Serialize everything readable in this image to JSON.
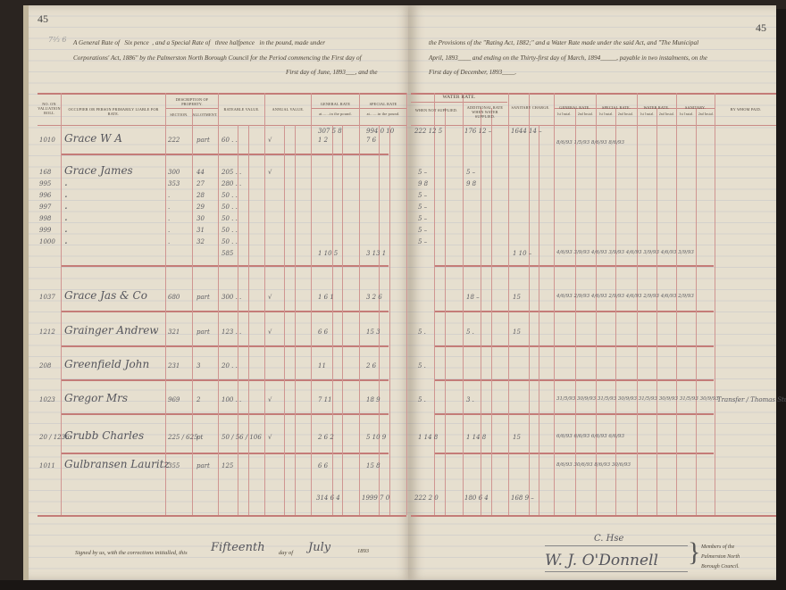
{
  "page_numbers": {
    "left": "45",
    "right": "45"
  },
  "margin_note": "7²⁄₃ 6",
  "preamble": {
    "left_lines": [
      "A General Rate of  Six pence , and a Special Rate of  three halfpence  in the pound, made under",
      "Corporations' Act, 1886\" by the Palmerston North Borough Council for the Period commencing the First day of",
      "First day of June, 1893___, and the"
    ],
    "right_lines": [
      "the Provisions of the \"Rating Act, 1882;\" and a Water Rate made under the said Act, and \"The Municipal",
      "April, 1893____ and ending on the Thirty-first day of March, 1894_____, payable in two instalments, on the",
      "First day of December, 1893____."
    ]
  },
  "columns": {
    "valuation_roll": "No. on Valuation Roll",
    "occupier": "Occupier or Person Primarily Liable for Rate.",
    "description": "Description of Property.",
    "section": "Section.",
    "allotment": "Allotment.",
    "rateable_value": "Rateable Value.",
    "annual_value": "Annual Value.",
    "general_rate": "General Rate",
    "general_rate_sub": "at.......in the pound.",
    "special_rate": "Special Rate",
    "special_rate_sub": "at.......in the pound.",
    "water_rate": "Water Rate.",
    "when_not_supplied": "When Not Supplied.",
    "additional_rate": "Additional Rate When Water Supplied.",
    "sanitary": "Sanitary Charge.",
    "pay_general": "General Rate.",
    "pay_special": "Special Rate.",
    "pay_water": "Water Rate.",
    "pay_sanitary": "Sanitary.",
    "inst1": "1st Instal.",
    "inst2": "2nd Instal.",
    "by_whom_paid": "By Whom Paid."
  },
  "brought_forward": {
    "general": "307 5 8",
    "special": "994 0 10",
    "water": "222 12 5",
    "additional": "176 12 –",
    "sanitary": "1644 14 –"
  },
  "rows": [
    {
      "val": "1010",
      "name": "Grace W A",
      "section": "222",
      "allotment": "part",
      "rateable": "60 . .",
      "check": "√",
      "general": "1 2",
      "special": "7 6",
      "water": "",
      "additional": "",
      "sanitary": "",
      "payments": "8/6/93  1/5/93  8/6/93  8/6/93",
      "paid_by": ""
    },
    {
      "val": "168",
      "name": "Grace James",
      "section": "300",
      "allotment": "44",
      "rateable": "205 . .",
      "check": "√",
      "general": "",
      "special": "",
      "water": "5 –",
      "additional": "5 –",
      "sanitary": "",
      "payments": "",
      "paid_by": ""
    },
    {
      "val": "995",
      "name": ".",
      "section": "353",
      "allotment": "27",
      "rateable": "280 . .",
      "check": "",
      "general": "",
      "special": "",
      "water": "9 8",
      "additional": "9 8",
      "sanitary": "",
      "payments": "",
      "paid_by": ""
    },
    {
      "val": "996",
      "name": ".",
      "section": ".",
      "allotment": "28",
      "rateable": "50 . .",
      "check": "",
      "general": "",
      "special": "",
      "water": "5 –",
      "additional": "",
      "sanitary": "",
      "payments": "",
      "paid_by": ""
    },
    {
      "val": "997",
      "name": ".",
      "section": ".",
      "allotment": "29",
      "rateable": "50 . .",
      "check": "",
      "general": "",
      "special": "",
      "water": "5 –",
      "additional": "",
      "sanitary": "",
      "payments": "",
      "paid_by": ""
    },
    {
      "val": "998",
      "name": ".",
      "section": ".",
      "allotment": "30",
      "rateable": "50 . .",
      "check": "",
      "general": "",
      "special": "",
      "water": "5 –",
      "additional": "",
      "sanitary": "",
      "payments": "",
      "paid_by": ""
    },
    {
      "val": "999",
      "name": ".",
      "section": ".",
      "allotment": "31",
      "rateable": "50 . .",
      "check": "",
      "general": "",
      "special": "",
      "water": "5 –",
      "additional": "",
      "sanitary": "",
      "payments": "",
      "paid_by": ""
    },
    {
      "val": "1000",
      "name": ".",
      "section": ".",
      "allotment": "32",
      "rateable": "50 . .",
      "check": "",
      "general": "",
      "special": "",
      "water": "5 –",
      "additional": "",
      "sanitary": "",
      "payments": "",
      "paid_by": ""
    },
    {
      "val": "",
      "name": "",
      "section": "",
      "allotment": "",
      "rateable": "585",
      "check": "",
      "general": "1 10 5",
      "special": "3 13 1",
      "water": "",
      "additional": "",
      "sanitary": "1 10 –",
      "payments": "4/6/93 3/9/93 4/6/93 3/9/93 4/6/93 3/9/93 4/6/93 3/9/93",
      "paid_by": ""
    },
    {
      "val": "1037",
      "name": "Grace Jas & Co",
      "section": "680",
      "allotment": "part",
      "rateable": "300 . .",
      "check": "√",
      "general": "1 6 1",
      "special": "3 2 6",
      "water": "",
      "additional": "18 –",
      "sanitary": "15",
      "payments": "4/6/93 2/9/93 4/6/93 2/9/93 4/6/93 2/9/93 4/6/93 2/9/93",
      "paid_by": ""
    },
    {
      "val": "1212",
      "name": "Grainger Andrew",
      "section": "321",
      "allotment": "part",
      "rateable": "123 . .",
      "check": "√",
      "general": "6 6",
      "special": "15 3",
      "water": "5 .",
      "additional": "5 .",
      "sanitary": "15",
      "payments": "",
      "paid_by": ""
    },
    {
      "val": "208",
      "name": "Greenfield John",
      "section": "231",
      "allotment": "3",
      "rateable": "20 . .",
      "check": "",
      "general": "11",
      "special": "2 6",
      "water": "5 .",
      "additional": "",
      "sanitary": "",
      "payments": "",
      "paid_by": ""
    },
    {
      "val": "1023",
      "name": "Gregor Mrs",
      "section": "969",
      "allotment": "2",
      "rateable": "100 . .",
      "check": "√",
      "general": "7 11",
      "special": "18 9",
      "water": "5 .",
      "additional": "3 .",
      "sanitary": "",
      "payments": "31/5/93 30/9/93 31/5/93 30/9/93 31/5/93 30/9/93 31/5/93 30/9/93",
      "paid_by": "Transfer / Thomas Sturges"
    },
    {
      "val": "20 / 1236",
      "name": "Grubb Charles",
      "section": "225 / 625",
      "allotment": "pt",
      "rateable": "50 / 56 / 106",
      "check": "√",
      "general": "2 6 2",
      "special": "5 10 9",
      "water": "1 14 8",
      "additional": "1 14 8",
      "sanitary": "15",
      "payments": "6/6/93   6/6/93   6/6/93   6/6/93",
      "paid_by": ""
    },
    {
      "val": "1011",
      "name": "Gulbransen Lauritz",
      "section": "355",
      "allotment": "part",
      "rateable": "125",
      "check": "",
      "general": "6 6",
      "special": "15 8",
      "water": "",
      "additional": "",
      "sanitary": "",
      "payments": "8/6/93 30/6/93 8/6/93 30/6/93",
      "paid_by": ""
    }
  ],
  "totals": {
    "general": "314 6 4",
    "special": "1999 7 0",
    "water": "222 2 0",
    "additional": "180 6 4",
    "sanitary": "168 9 –"
  },
  "footer": {
    "signed_prefix": "Signed by us, with the corrections initialled, this",
    "day_value": "Fifteenth",
    "day_of": "day of",
    "month_value": "July",
    "year": "1893",
    "signature_1": "C. Hse",
    "signature_2": "W. J. O'Donnell",
    "members_line_1": "Members of the",
    "members_line_2": "Palmerston North",
    "members_line_3": "Borough Council."
  }
}
